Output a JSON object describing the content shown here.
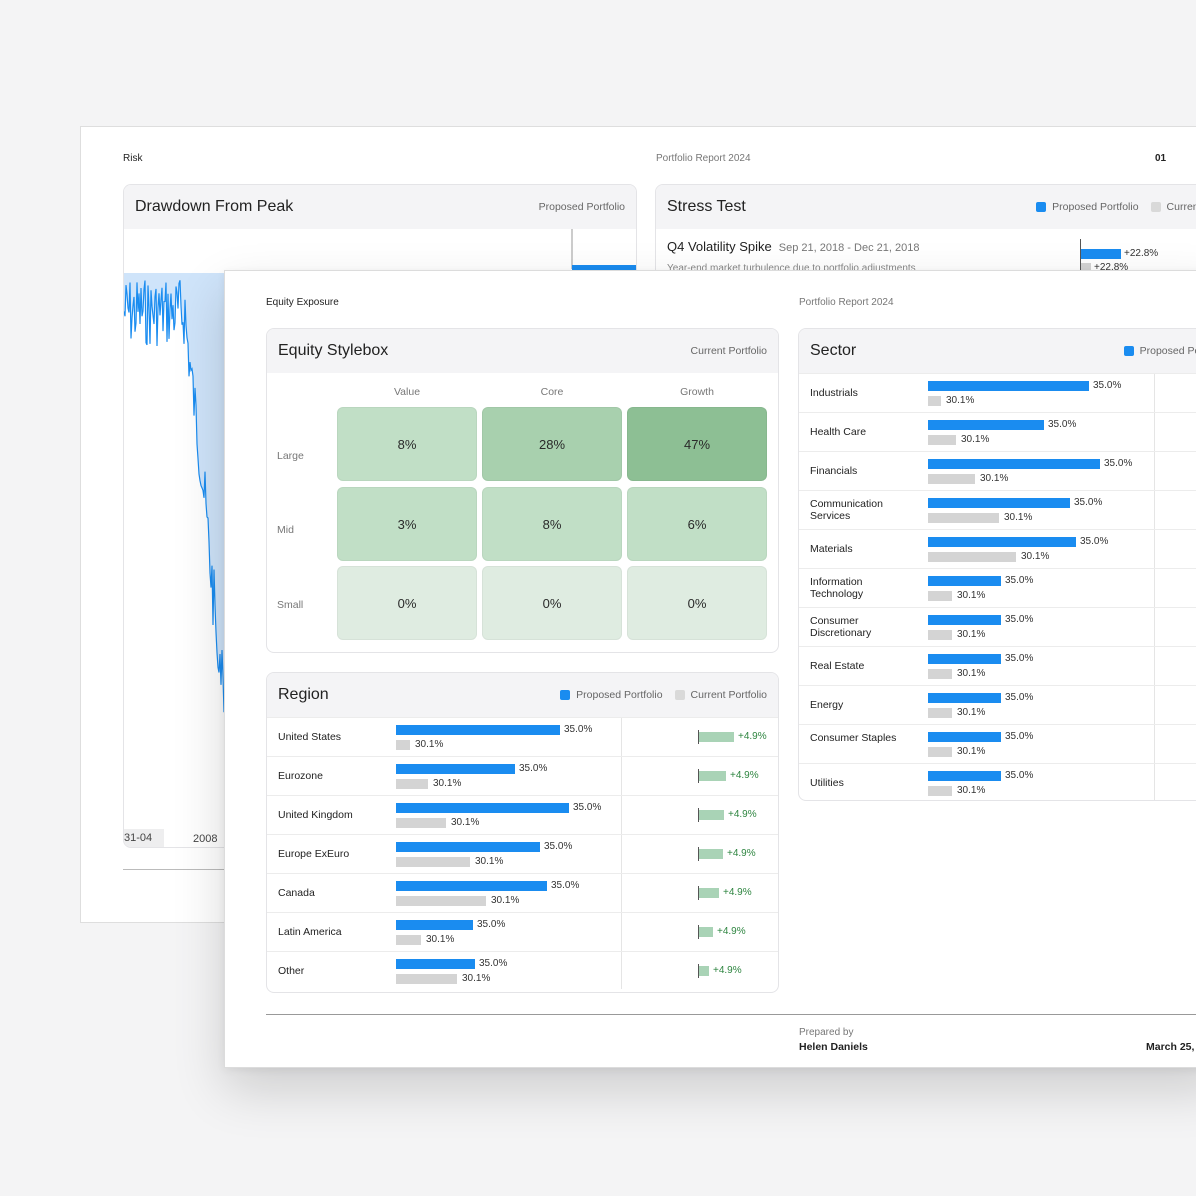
{
  "back_page": {
    "section": "Risk",
    "report_title": "Portfolio Report 2024",
    "page_number": "01",
    "drawdown": {
      "title": "Drawdown From Peak",
      "legend": "Proposed Portfolio",
      "x_ticks": [
        "31-04",
        "2008"
      ]
    },
    "stress_test": {
      "title": "Stress Test",
      "legend": [
        "Proposed Portfolio",
        "Current Portfolio"
      ],
      "event": {
        "name": "Q4 Volatility Spike",
        "dates": "Sep 21, 2018 - Dec 21, 2018",
        "description": "Year-end market turbulence due to portfolio adjustments",
        "proposed": "+22.8%",
        "current": "+22.8%"
      }
    }
  },
  "front_page": {
    "section": "Equity Exposure",
    "report_title": "Portfolio Report 2024",
    "stylebox": {
      "title": "Equity Stylebox",
      "legend": "Current Portfolio",
      "columns": [
        "Value",
        "Core",
        "Growth"
      ],
      "rows": [
        {
          "label": "Large",
          "cells": [
            "8%",
            "28%",
            "47%"
          ]
        },
        {
          "label": "Mid",
          "cells": [
            "3%",
            "8%",
            "6%"
          ]
        },
        {
          "label": "Small",
          "cells": [
            "0%",
            "0%",
            "0%"
          ]
        }
      ],
      "cell_colors": [
        [
          "#c1dfc6",
          "#a8d0ae",
          "#8dbf94"
        ],
        [
          "#c1dfc6",
          "#c1dfc6",
          "#c1dfc6"
        ],
        [
          "#dfece1",
          "#dfece1",
          "#dfece1"
        ]
      ]
    },
    "region": {
      "title": "Region",
      "legend": [
        "Proposed Portfolio",
        "Current Portfolio"
      ],
      "rows": [
        {
          "label": "United States",
          "proposed_label": "35.0%",
          "current_label": "30.1%",
          "diff": "+4.9%",
          "proposed_frac": 0.73,
          "current_frac": 0.06,
          "diff_frac": 0.78
        },
        {
          "label": "Eurozone",
          "proposed_label": "35.0%",
          "current_label": "30.1%",
          "diff": "+4.9%",
          "proposed_frac": 0.53,
          "current_frac": 0.14,
          "diff_frac": 0.59
        },
        {
          "label": "United Kingdom",
          "proposed_label": "35.0%",
          "current_label": "30.1%",
          "diff": "+4.9%",
          "proposed_frac": 0.77,
          "current_frac": 0.22,
          "diff_frac": 0.56
        },
        {
          "label": "Europe ExEuro",
          "proposed_label": "35.0%",
          "current_label": "30.1%",
          "diff": "+4.9%",
          "proposed_frac": 0.64,
          "current_frac": 0.33,
          "diff_frac": 0.53
        },
        {
          "label": "Canada",
          "proposed_label": "35.0%",
          "current_label": "30.1%",
          "diff": "+4.9%",
          "proposed_frac": 0.67,
          "current_frac": 0.4,
          "diff_frac": 0.44
        },
        {
          "label": "Latin America",
          "proposed_label": "35.0%",
          "current_label": "30.1%",
          "diff": "+4.9%",
          "proposed_frac": 0.34,
          "current_frac": 0.11,
          "diff_frac": 0.31
        },
        {
          "label": "Other",
          "proposed_label": "35.0%",
          "current_label": "30.1%",
          "diff": "+4.9%",
          "proposed_frac": 0.35,
          "current_frac": 0.27,
          "diff_frac": 0.22
        }
      ]
    },
    "sector": {
      "title": "Sector",
      "legend": "Proposed Portfolio",
      "rows": [
        {
          "label": "Industrials",
          "proposed_label": "35.0%",
          "current_label": "30.1%",
          "proposed_frac": 0.75,
          "current_frac": 0.06
        },
        {
          "label": "Health Care",
          "proposed_label": "35.0%",
          "current_label": "30.1%",
          "proposed_frac": 0.54,
          "current_frac": 0.13
        },
        {
          "label": "Financials",
          "proposed_label": "35.0%",
          "current_label": "30.1%",
          "proposed_frac": 0.8,
          "current_frac": 0.22
        },
        {
          "label": "Communication Services",
          "proposed_label": "35.0%",
          "current_label": "30.1%",
          "proposed_frac": 0.66,
          "current_frac": 0.33
        },
        {
          "label": "Materials",
          "proposed_label": "35.0%",
          "current_label": "30.1%",
          "proposed_frac": 0.69,
          "current_frac": 0.41
        },
        {
          "label": "Information Technology",
          "proposed_label": "35.0%",
          "current_label": "30.1%",
          "proposed_frac": 0.34,
          "current_frac": 0.11
        },
        {
          "label": "Consumer Discretionary",
          "proposed_label": "35.0%",
          "current_label": "30.1%",
          "proposed_frac": 0.34,
          "current_frac": 0.11
        },
        {
          "label": "Real Estate",
          "proposed_label": "35.0%",
          "current_label": "30.1%",
          "proposed_frac": 0.34,
          "current_frac": 0.11
        },
        {
          "label": "Energy",
          "proposed_label": "35.0%",
          "current_label": "30.1%",
          "proposed_frac": 0.34,
          "current_frac": 0.11
        },
        {
          "label": "Consumer Staples",
          "proposed_label": "35.0%",
          "current_label": "30.1%",
          "proposed_frac": 0.34,
          "current_frac": 0.11
        },
        {
          "label": "Utilities",
          "proposed_label": "35.0%",
          "current_label": "30.1%",
          "proposed_frac": 0.34,
          "current_frac": 0.11
        }
      ]
    },
    "footer": {
      "prepared_by_label": "Prepared by",
      "prepared_by_name": "Helen Daniels",
      "date": "March 25,"
    }
  },
  "colors": {
    "proposed": "#1a8cf0",
    "current": "#d4d4d4",
    "diff_bar": "#a9d3b6",
    "diff_text": "#2e8540",
    "drawdown_line": "#1a8cf0",
    "drawdown_fill": "#cfe4fa"
  }
}
